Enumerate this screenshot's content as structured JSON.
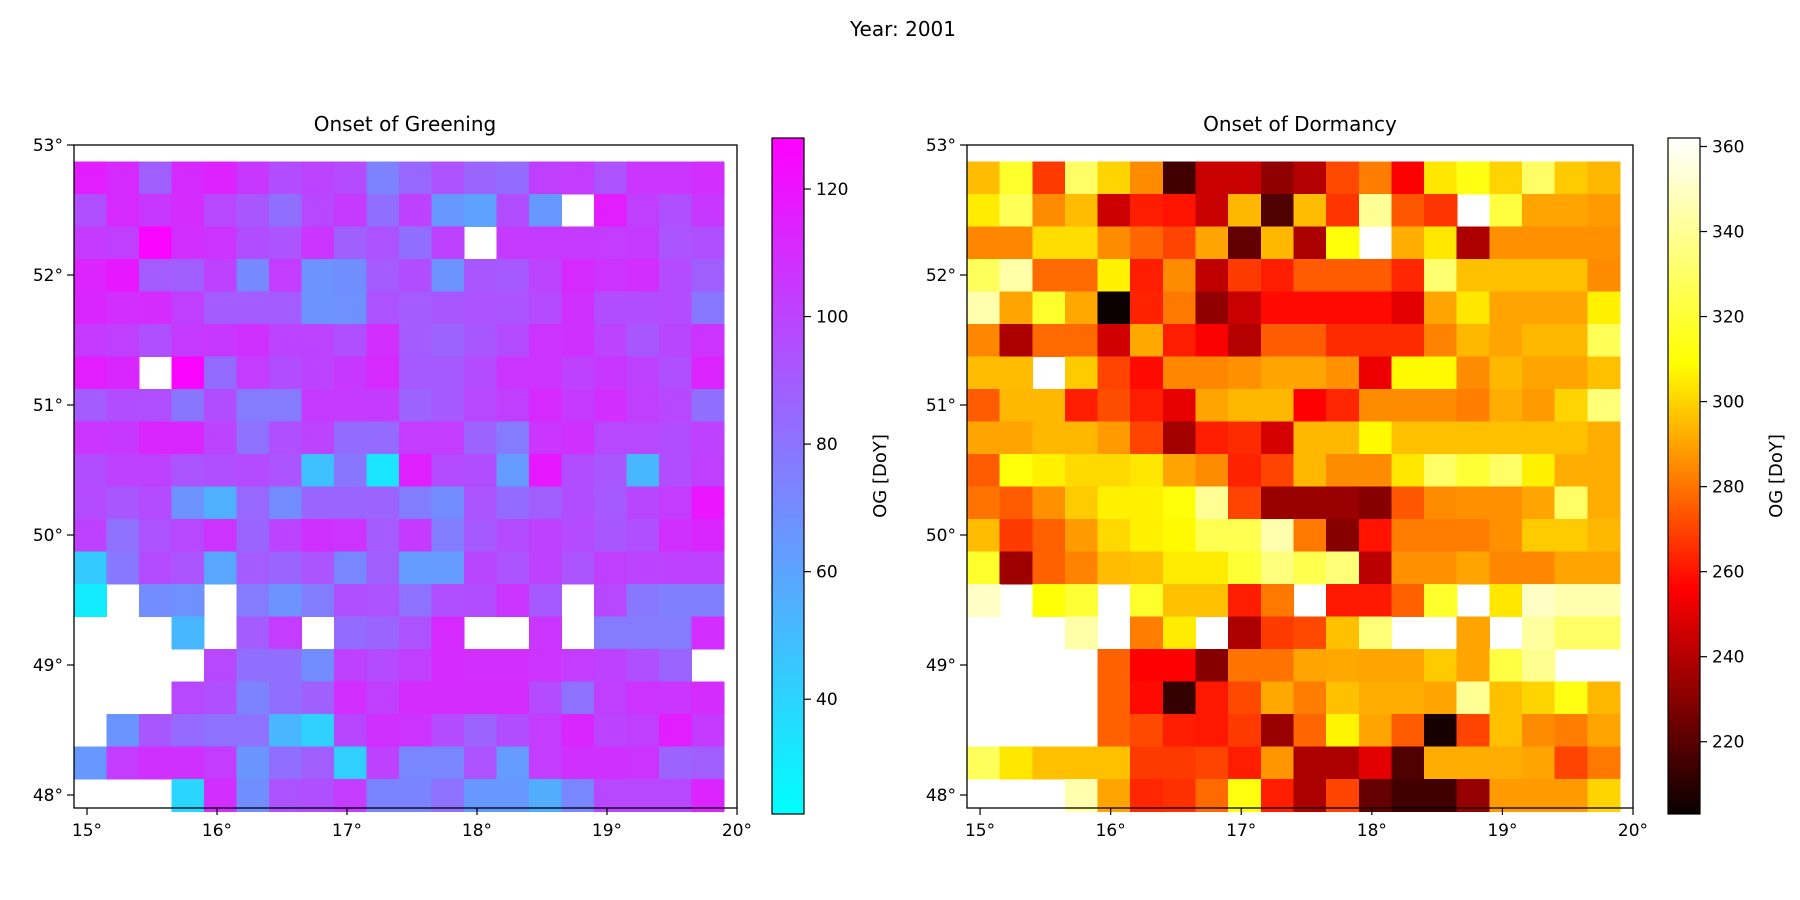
{
  "suptitle": "Year: 2001",
  "chart_data": [
    {
      "type": "heatmap",
      "title": "Onset of Greening",
      "colorbar_label": "OG [DoY]",
      "colormap": "cool",
      "colormap_stops": [
        "#00ffff",
        "#ff00ff"
      ],
      "vmin": 22,
      "vmax": 128,
      "colorbar_ticks": [
        40,
        60,
        80,
        100,
        120
      ],
      "xlim": [
        14.9,
        20.0
      ],
      "ylim": [
        47.9,
        53.0
      ],
      "xticks": [
        15,
        16,
        17,
        18,
        19,
        20
      ],
      "yticks": [
        48,
        49,
        50,
        51,
        52,
        53
      ],
      "xtick_labels": [
        "15°",
        "16°",
        "17°",
        "18°",
        "19°",
        "20°"
      ],
      "ytick_labels": [
        "48°",
        "49°",
        "50°",
        "51°",
        "52°",
        "53°"
      ],
      "grid_lon_start": 14.9,
      "grid_lat_top": 52.875,
      "cell_size": 0.25,
      "grid": [
        [
          116,
          111,
          89,
          111,
          114,
          105,
          96,
          100,
          97,
          74,
          85,
          94,
          86,
          83,
          102,
          103,
          94,
          106,
          106,
          109
        ],
        [
          95,
          111,
          105,
          110,
          98,
          92,
          82,
          98,
          104,
          82,
          101,
          65,
          61,
          96,
          65,
          null,
          116,
          102,
          95,
          105
        ],
        [
          104,
          102,
          126,
          109,
          107,
          96,
          93,
          106,
          88,
          94,
          82,
          101,
          null,
          104,
          104,
          104,
          103,
          104,
          93,
          95
        ],
        [
          113,
          118,
          90,
          89,
          101,
          71,
          103,
          67,
          69,
          90,
          96,
          67,
          92,
          91,
          100,
          111,
          107,
          109,
          97,
          89
        ],
        [
          112,
          109,
          110,
          102,
          90,
          90,
          90,
          67,
          68,
          94,
          90,
          92,
          94,
          93,
          97,
          108,
          96,
          96,
          97,
          78
        ],
        [
          104,
          102,
          95,
          104,
          105,
          108,
          100,
          100,
          95,
          109,
          90,
          87,
          92,
          97,
          107,
          108,
          100,
          92,
          99,
          107
        ],
        [
          116,
          112,
          null,
          126,
          83,
          103,
          96,
          100,
          105,
          111,
          91,
          91,
          97,
          106,
          107,
          101,
          105,
          101,
          95,
          113
        ],
        [
          90,
          96,
          95,
          79,
          96,
          77,
          77,
          104,
          104,
          104,
          87,
          91,
          98,
          102,
          111,
          104,
          109,
          102,
          98,
          82
        ],
        [
          106,
          105,
          112,
          112,
          100,
          81,
          95,
          100,
          83,
          84,
          103,
          103,
          87,
          77,
          106,
          108,
          98,
          98,
          96,
          101
        ],
        [
          96,
          101,
          101,
          93,
          95,
          97,
          93,
          48,
          79,
          33,
          115,
          97,
          96,
          64,
          118,
          96,
          92,
          52,
          96,
          102
        ],
        [
          97,
          92,
          97,
          67,
          55,
          85,
          70,
          86,
          86,
          87,
          76,
          70,
          93,
          83,
          89,
          96,
          91,
          99,
          103,
          119
        ],
        [
          101,
          81,
          94,
          98,
          107,
          86,
          100,
          108,
          107,
          90,
          104,
          76,
          91,
          97,
          101,
          97,
          92,
          95,
          108,
          112
        ],
        [
          44,
          78,
          97,
          93,
          59,
          90,
          86,
          93,
          72,
          89,
          64,
          64,
          99,
          93,
          101,
          93,
          102,
          100,
          101,
          101
        ],
        [
          30,
          null,
          70,
          68,
          null,
          77,
          67,
          76,
          95,
          94,
          81,
          95,
          96,
          106,
          91,
          null,
          98,
          78,
          75,
          75
        ],
        [
          null,
          null,
          null,
          52,
          null,
          90,
          103,
          null,
          83,
          86,
          94,
          111,
          null,
          null,
          106,
          null,
          77,
          77,
          77,
          109
        ],
        [
          null,
          null,
          null,
          null,
          98,
          82,
          82,
          70,
          101,
          97,
          102,
          111,
          109,
          109,
          107,
          103,
          101,
          95,
          86,
          null
        ],
        [
          null,
          null,
          null,
          98,
          95,
          74,
          82,
          88,
          109,
          102,
          110,
          110,
          110,
          110,
          97,
          81,
          102,
          107,
          106,
          110
        ],
        [
          null,
          66,
          92,
          84,
          81,
          81,
          52,
          41,
          99,
          108,
          107,
          97,
          87,
          96,
          103,
          112,
          100,
          102,
          116,
          104
        ],
        [
          65,
          103,
          108,
          108,
          103,
          66,
          82,
          89,
          42,
          101,
          72,
          72,
          94,
          64,
          103,
          108,
          108,
          107,
          87,
          89
        ],
        [
          null,
          null,
          null,
          39,
          109,
          69,
          94,
          95,
          103,
          73,
          73,
          81,
          65,
          65,
          56,
          72,
          98,
          98,
          98,
          113
        ]
      ]
    },
    {
      "type": "heatmap",
      "title": "Onset of Dormancy",
      "colorbar_label": "OG [DoY]",
      "colormap": "hot",
      "colormap_stops": [
        "#0a0000",
        "#ff0000",
        "#ffff00",
        "#ffffff"
      ],
      "vmin": 203,
      "vmax": 362,
      "colorbar_ticks": [
        220,
        240,
        260,
        280,
        300,
        320,
        340,
        360
      ],
      "xlim": [
        14.9,
        20.0
      ],
      "ylim": [
        47.9,
        53.0
      ],
      "xticks": [
        15,
        16,
        17,
        18,
        19,
        20
      ],
      "yticks": [
        48,
        49,
        50,
        51,
        52,
        53
      ],
      "xtick_labels": [
        "15°",
        "16°",
        "17°",
        "18°",
        "19°",
        "20°"
      ],
      "ytick_labels": [
        "48°",
        "49°",
        "50°",
        "51°",
        "52°",
        "53°"
      ],
      "grid_lon_start": 14.9,
      "grid_lat_top": 52.875,
      "cell_size": 0.25,
      "grid": [
        [
          295,
          318,
          268,
          330,
          300,
          285,
          215,
          244,
          244,
          232,
          240,
          271,
          282,
          255,
          304,
          313,
          300,
          330,
          298,
          294
        ],
        [
          305,
          327,
          285,
          295,
          245,
          262,
          260,
          244,
          294,
          218,
          295,
          267,
          340,
          274,
          267,
          null,
          322,
          290,
          290,
          288
        ],
        [
          284,
          284,
          302,
          302,
          285,
          277,
          270,
          290,
          222,
          294,
          238,
          311,
          null,
          292,
          304,
          238,
          286,
          286,
          286,
          286
        ],
        [
          328,
          344,
          278,
          278,
          306,
          262,
          285,
          242,
          268,
          262,
          275,
          275,
          275,
          264,
          332,
          296,
          296,
          296,
          296,
          285
        ],
        [
          345,
          290,
          318,
          291,
          203,
          263,
          281,
          232,
          244,
          258,
          258,
          258,
          258,
          250,
          290,
          304,
          290,
          290,
          290,
          306
        ],
        [
          284,
          238,
          278,
          278,
          246,
          291,
          262,
          255,
          240,
          275,
          275,
          265,
          265,
          265,
          283,
          294,
          290,
          294,
          294,
          327
        ],
        [
          295,
          295,
          null,
          298,
          270,
          258,
          284,
          284,
          286,
          290,
          290,
          286,
          252,
          308,
          308,
          285,
          294,
          290,
          290,
          296
        ],
        [
          275,
          294,
          294,
          262,
          272,
          262,
          251,
          290,
          294,
          294,
          256,
          264,
          285,
          285,
          285,
          282,
          292,
          288,
          300,
          334
        ],
        [
          290,
          290,
          294,
          294,
          288,
          270,
          236,
          262,
          265,
          247,
          294,
          294,
          308,
          296,
          296,
          296,
          296,
          296,
          296,
          292
        ],
        [
          275,
          311,
          306,
          301,
          301,
          304,
          290,
          285,
          263,
          270,
          294,
          285,
          285,
          304,
          330,
          320,
          330,
          306,
          292,
          292
        ],
        [
          280,
          275,
          286,
          298,
          306,
          306,
          311,
          340,
          270,
          234,
          234,
          234,
          230,
          274,
          285,
          286,
          286,
          290,
          330,
          292
        ],
        [
          295,
          268,
          276,
          288,
          301,
          306,
          308,
          326,
          326,
          345,
          281,
          230,
          260,
          282,
          282,
          282,
          286,
          298,
          298,
          294
        ],
        [
          318,
          235,
          276,
          283,
          295,
          296,
          305,
          305,
          320,
          335,
          325,
          334,
          241,
          286,
          286,
          290,
          284,
          284,
          290,
          290
        ],
        [
          350,
          null,
          310,
          320,
          null,
          318,
          296,
          296,
          262,
          281,
          null,
          261,
          261,
          276,
          318,
          null,
          304,
          350,
          345,
          345
        ],
        [
          null,
          null,
          null,
          344,
          null,
          282,
          305,
          null,
          238,
          268,
          271,
          296,
          334,
          null,
          null,
          290,
          null,
          342,
          330,
          330
        ],
        [
          null,
          null,
          null,
          null,
          276,
          256,
          256,
          230,
          280,
          280,
          290,
          291,
          290,
          290,
          298,
          290,
          323,
          339,
          null,
          null
        ],
        [
          null,
          null,
          null,
          null,
          276,
          258,
          212,
          261,
          271,
          291,
          282,
          296,
          292,
          292,
          290,
          340,
          296,
          300,
          313,
          294
        ],
        [
          null,
          null,
          null,
          null,
          276,
          271,
          262,
          261,
          268,
          234,
          277,
          307,
          290,
          275,
          206,
          270,
          296,
          285,
          282,
          290
        ],
        [
          328,
          304,
          296,
          296,
          296,
          268,
          268,
          270,
          262,
          287,
          238,
          238,
          250,
          218,
          292,
          292,
          292,
          290,
          270,
          281
        ],
        [
          null,
          null,
          null,
          345,
          290,
          264,
          266,
          278,
          312,
          262,
          238,
          270,
          223,
          215,
          215,
          233,
          288,
          288,
          288,
          300
        ]
      ]
    }
  ]
}
